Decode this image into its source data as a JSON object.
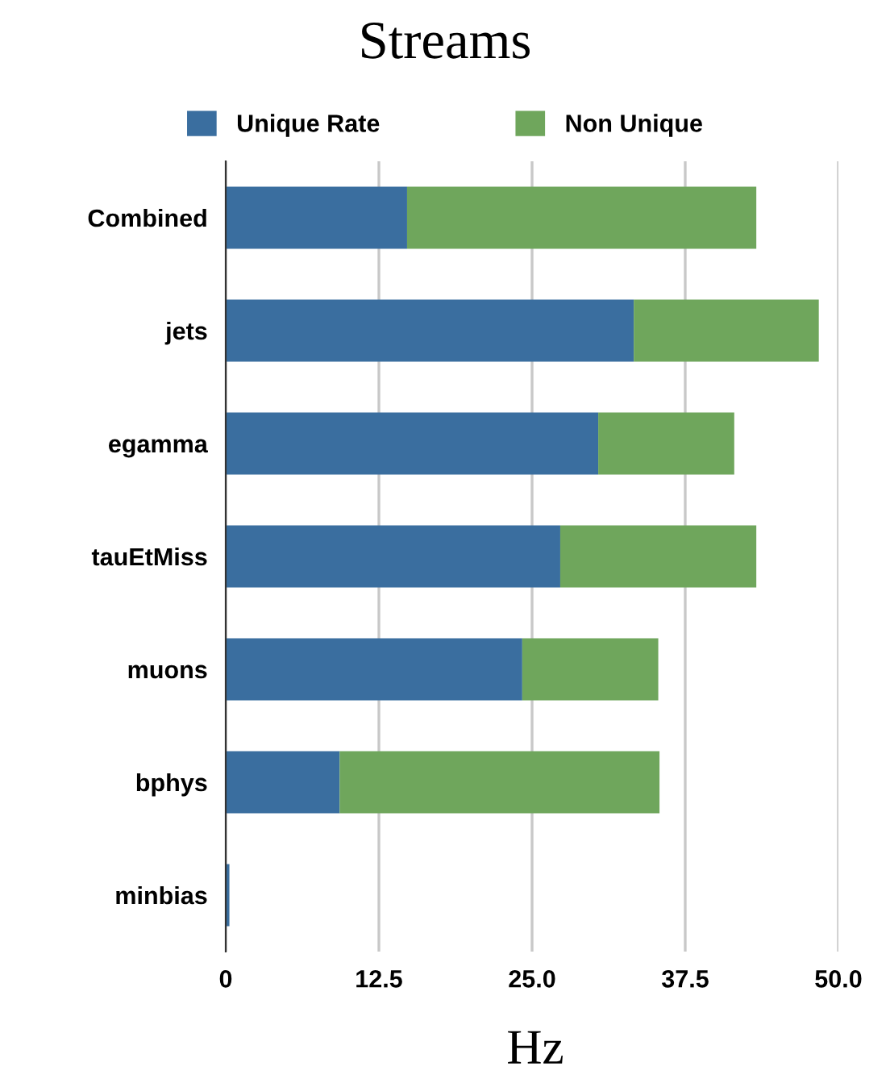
{
  "chart_data": {
    "type": "bar",
    "orientation": "horizontal",
    "stacked": true,
    "title": "Streams",
    "xlabel": "Hz",
    "categories": [
      "Combined",
      "jets",
      "egamma",
      "tauEtMiss",
      "muons",
      "bphys",
      "minbias"
    ],
    "series": [
      {
        "name": "Unique Rate",
        "color": "#3a6e9f",
        "values": [
          14.8,
          33.3,
          30.4,
          27.3,
          24.2,
          9.3,
          0.3
        ]
      },
      {
        "name": "Non Unique",
        "color": "#6fa65c",
        "values": [
          28.5,
          15.1,
          11.1,
          16.0,
          11.1,
          26.1,
          0
        ]
      }
    ],
    "xlim": [
      0,
      50
    ],
    "xticks": [
      0,
      {
        "value": 12.5,
        "label": "12.5"
      },
      {
        "value": 25,
        "label": "25.0"
      },
      {
        "value": 37.5,
        "label": "37.5"
      },
      {
        "value": 50,
        "label": "50.0"
      }
    ],
    "grid": "x",
    "legend": "top"
  }
}
